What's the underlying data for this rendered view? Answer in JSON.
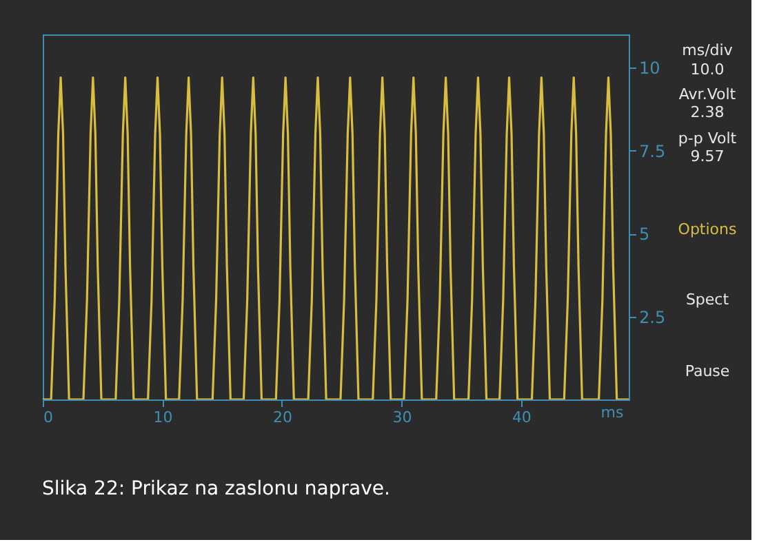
{
  "chart_data": {
    "type": "line",
    "title": "Slika 22: Prikaz na zaslonu naprave.",
    "xlabel": "ms",
    "x": [
      0,
      0.7,
      1.0,
      1.3,
      1.5,
      1.7,
      1.9,
      2.2,
      3.4,
      3.7,
      4.0,
      4.2,
      4.4,
      4.6,
      4.9,
      6.1,
      6.4,
      6.7,
      6.9,
      7.1,
      7.3,
      7.6,
      8.8,
      9.1,
      9.4,
      9.6,
      9.8,
      10.0,
      10.3,
      11.4,
      11.7,
      12.0,
      12.2,
      12.4,
      12.6,
      12.9,
      14.2,
      14.5,
      14.8,
      15.0,
      15.2,
      15.4,
      15.7,
      16.8,
      17.1,
      17.4,
      17.6,
      17.8,
      18.0,
      18.3,
      19.5,
      19.8,
      20.1,
      20.3,
      20.5,
      20.7,
      21.0,
      22.2,
      22.5,
      22.8,
      23.0,
      23.2,
      23.4,
      23.7,
      24.9,
      25.2,
      25.5,
      25.7,
      25.9,
      26.1,
      26.4,
      27.6,
      27.9,
      28.2,
      28.4,
      28.6,
      28.8,
      29.1,
      30.2,
      30.5,
      30.8,
      31.0,
      31.2,
      31.4,
      31.7,
      32.9,
      33.2,
      33.5,
      33.7,
      33.9,
      34.1,
      34.4,
      35.6,
      35.9,
      36.2,
      36.4,
      36.6,
      36.8,
      37.1,
      38.2,
      38.5,
      38.8,
      39.0,
      39.2,
      39.4,
      39.7,
      40.9,
      41.2,
      41.5,
      41.7,
      41.9,
      42.1,
      42.4,
      43.6,
      43.9,
      44.2,
      44.4,
      44.6,
      44.8,
      45.1,
      46.5,
      46.8,
      47.1,
      47.3,
      47.5,
      47.7,
      48.0,
      49.0
    ],
    "series": [
      {
        "color": "#d9bd3f",
        "values": [
          0,
          0,
          3,
          8,
          9.7,
          8,
          4,
          0,
          0,
          3,
          8,
          9.7,
          8,
          4,
          0,
          0,
          3,
          8,
          9.7,
          8,
          4,
          0,
          0,
          3,
          8,
          9.7,
          8,
          4,
          0,
          0,
          3,
          8,
          9.7,
          8,
          4,
          0,
          0,
          3,
          8,
          9.7,
          8,
          4,
          0,
          0,
          3,
          8,
          9.7,
          8,
          4,
          0,
          0,
          3,
          8,
          9.7,
          8,
          4,
          0,
          0,
          3,
          8,
          9.7,
          8,
          4,
          0,
          0,
          3,
          8,
          9.7,
          8,
          4,
          0,
          0,
          3,
          8,
          9.7,
          8,
          4,
          0,
          0,
          3,
          8,
          9.7,
          8,
          4,
          0,
          0,
          3,
          8,
          9.7,
          8,
          4,
          0,
          0,
          3,
          8,
          9.7,
          8,
          4,
          0,
          0,
          3,
          8,
          9.7,
          8,
          4,
          0,
          0,
          3,
          8,
          9.7,
          8,
          4,
          0,
          0,
          3,
          8,
          9.7,
          8,
          4,
          0,
          0,
          3,
          8,
          9.7,
          8,
          4,
          0,
          0
        ]
      }
    ],
    "xlim": [
      0,
      49
    ],
    "xticks": [
      0,
      10,
      20,
      30,
      40
    ],
    "ylim": [
      0,
      11
    ],
    "yticks": [
      2.5,
      5,
      7.5,
      10
    ],
    "grid": false,
    "marker": "none",
    "line_style": "solid",
    "annotations": [
      "ms/div",
      "10.0",
      "Avr.Volt",
      "2.38",
      "p-p Volt",
      "9.57",
      "Options",
      "Spect",
      "Pause"
    ]
  }
}
